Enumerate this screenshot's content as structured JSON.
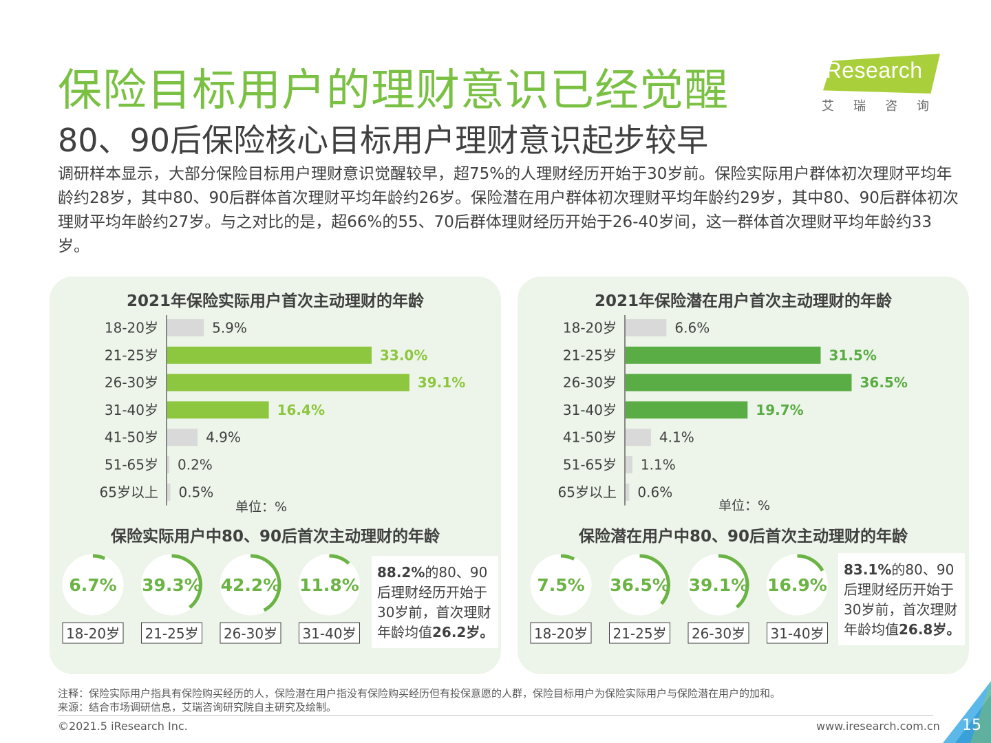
{
  "header": {
    "title": "保险目标用户的理财意识已经觉醒",
    "subtitle": "80、90后保险核心目标用户理财意识起步较早",
    "logo_text": "iResearch",
    "logo_sub": "艾瑞咨询"
  },
  "intro": "调研样本显示，大部分保险目标用户理财意识觉醒较早，超75%的人理财经历开始于30岁前。保险实际用户群体初次理财平均年龄约28岁，其中80、90后群体首次理财平均年龄约26岁。保险潜在用户群体初次理财平均年龄约29岁，其中80、90后群体初次理财平均年龄约27岁。与之对比的是，超66%的55、70后群体理财经历开始于26-40岁间，这一群体首次理财平均年龄约33岁。",
  "colors": {
    "green_light": "#8dc63f",
    "green_dark": "#5aac44",
    "grey_bar": "#d9d9d9",
    "panel_bg": "#edf5ea",
    "title_green": "#7ac143"
  },
  "left_panel": {
    "bar_title": "2021年保险实际用户首次主动理财的年龄",
    "unit": "单位：%",
    "ring_title": "保险实际用户中80、90后首次主动理财的年龄",
    "note_bold1": "88.2%",
    "note_text1": "的80、90后理财经历开始于30岁前，首次理财年龄均值",
    "note_bold2": "26.2岁。"
  },
  "right_panel": {
    "bar_title": "2021年保险潜在用户首次主动理财的年龄",
    "unit": "单位：%",
    "ring_title": "保险潜在用户中80、90后首次主动理财的年龄",
    "note_bold1": "83.1%",
    "note_text1": "的80、90后理财经历开始于30岁前，首次理财年龄均值",
    "note_bold2": "26.8岁。"
  },
  "chart_data": [
    {
      "type": "bar",
      "orientation": "horizontal",
      "title": "2021年保险实际用户首次主动理财的年龄",
      "unit": "单位：%",
      "categories": [
        "18-20岁",
        "21-25岁",
        "26-30岁",
        "31-40岁",
        "41-50岁",
        "51-65岁",
        "65岁以上"
      ],
      "values": [
        5.9,
        33.0,
        39.1,
        16.4,
        4.9,
        0.2,
        0.5
      ],
      "labels": [
        "5.9%",
        "33.0%",
        "39.1%",
        "16.4%",
        "4.9%",
        "0.2%",
        "0.5%"
      ],
      "highlight": [
        false,
        true,
        true,
        true,
        false,
        false,
        false
      ],
      "highlight_color": "#8dc63f"
    },
    {
      "type": "bar",
      "orientation": "horizontal",
      "title": "2021年保险潜在用户首次主动理财的年龄",
      "unit": "单位：%",
      "categories": [
        "18-20岁",
        "21-25岁",
        "26-30岁",
        "31-40岁",
        "41-50岁",
        "51-65岁",
        "65岁以上"
      ],
      "values": [
        6.6,
        31.5,
        36.5,
        19.7,
        4.1,
        1.1,
        0.6
      ],
      "labels": [
        "6.6%",
        "31.5%",
        "36.5%",
        "19.7%",
        "4.1%",
        "1.1%",
        "0.6%"
      ],
      "highlight": [
        false,
        true,
        true,
        true,
        false,
        false,
        false
      ],
      "highlight_color": "#5aac44"
    },
    {
      "type": "pie",
      "title": "保险实际用户中80、90后首次主动理财的年龄",
      "categories": [
        "18-20岁",
        "21-25岁",
        "26-30岁",
        "31-40岁"
      ],
      "values": [
        6.7,
        39.3,
        42.2,
        11.8
      ],
      "labels": [
        "6.7%",
        "39.3%",
        "42.2%",
        "11.8%"
      ]
    },
    {
      "type": "pie",
      "title": "保险潜在用户中80、90后首次主动理财的年龄",
      "categories": [
        "18-20岁",
        "21-25岁",
        "26-30岁",
        "31-40岁"
      ],
      "values": [
        7.5,
        36.5,
        39.1,
        16.9
      ],
      "labels": [
        "7.5%",
        "36.5%",
        "39.1%",
        "16.9%"
      ]
    }
  ],
  "footer": {
    "note": "注释：保险实际用户指具有保险购买经历的人，保险潜在用户指没有保险购买经历但有投保意愿的人群，保险目标用户为保险实际用户与保险潜在用户的加和。",
    "source": "来源：结合市场调研信息，艾瑞咨询研究院自主研究及绘制。",
    "copyright": "©2021.5 iResearch Inc.",
    "url": "www.iresearch.com.cn",
    "page": "15"
  }
}
